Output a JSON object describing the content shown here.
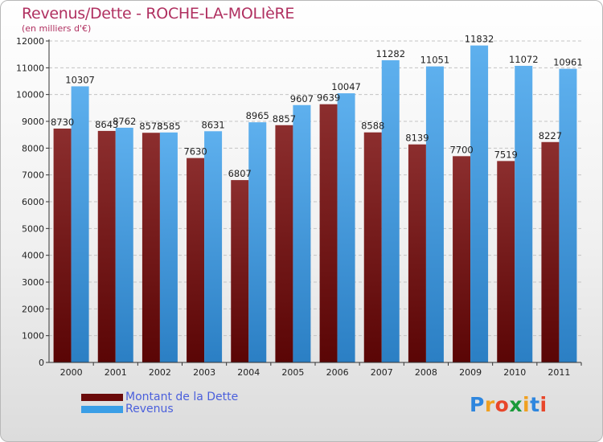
{
  "header": {
    "title": "Revenus/Dette - ROCHE-LA-MOLIèRE",
    "subtitle": "(en milliers d'€)"
  },
  "colors": {
    "dette": "#7a1010",
    "revenus": "#3a9ee6",
    "title": "#b03060",
    "legend_text": "#4a5fdc"
  },
  "chart_data": {
    "type": "bar",
    "title": "Revenus/Dette - ROCHE-LA-MOLIèRE",
    "subtitle": "(en milliers d'€)",
    "categories": [
      "2000",
      "2001",
      "2002",
      "2003",
      "2004",
      "2005",
      "2006",
      "2007",
      "2008",
      "2009",
      "2010",
      "2011"
    ],
    "series": [
      {
        "name": "Montant de la Dette",
        "values": [
          8730,
          8643,
          8573,
          7630,
          6807,
          8857,
          9639,
          8588,
          8139,
          7700,
          7519,
          8227
        ]
      },
      {
        "name": "Revenus",
        "values": [
          10307,
          8762,
          8585,
          8631,
          8965,
          9607,
          10047,
          11282,
          11051,
          11832,
          11072,
          10961
        ]
      }
    ],
    "ylim": [
      0,
      12000
    ],
    "yticks": [
      0,
      1000,
      2000,
      3000,
      4000,
      5000,
      6000,
      7000,
      8000,
      9000,
      10000,
      11000,
      12000
    ],
    "grid": true,
    "legend": "bottom-left"
  },
  "legend": {
    "items": [
      {
        "label": "Montant de la Dette",
        "color": "#7a1010"
      },
      {
        "label": "Revenus",
        "color": "#3a9ee6"
      }
    ]
  },
  "logo": {
    "letters": [
      "P",
      "r",
      "o",
      "x",
      "i",
      "t",
      "i"
    ],
    "colors": [
      "#2e86de",
      "#f0a020",
      "#e8462a",
      "#1a9a3a",
      "#f0a020",
      "#2e86de",
      "#e8462a"
    ]
  }
}
